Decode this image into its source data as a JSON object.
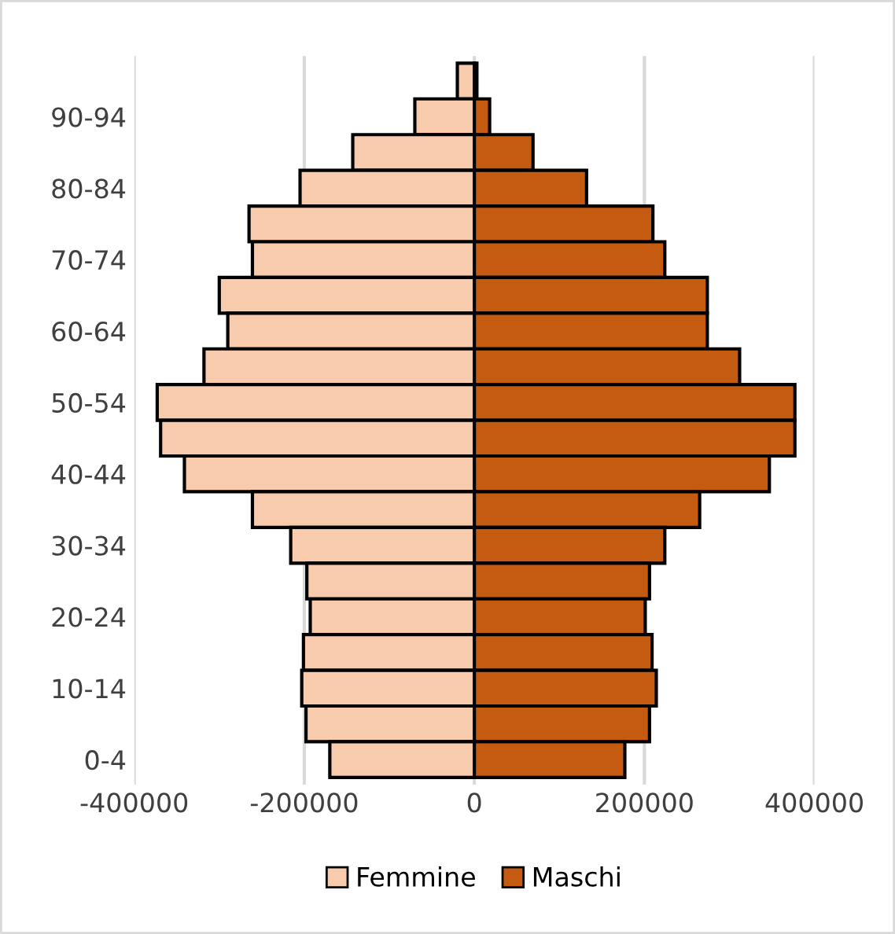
{
  "chart_data": {
    "type": "bar",
    "orientation": "horizontal",
    "categories": [
      null,
      "90-94",
      null,
      "80-84",
      null,
      "70-74",
      null,
      "60-64",
      null,
      "50-54",
      null,
      "40-44",
      null,
      "30-34",
      null,
      "20-24",
      null,
      "10-14",
      null,
      "0-4"
    ],
    "series": [
      {
        "name": "Femmine",
        "color": "#f8cbad",
        "values": [
          -20000,
          -70000,
          -143000,
          -205000,
          -265000,
          -261000,
          -300000,
          -290000,
          -318000,
          -373000,
          -369000,
          -341000,
          -261000,
          -216000,
          -197000,
          -193000,
          -201000,
          -203000,
          -198000,
          -170000
        ]
      },
      {
        "name": "Maschi",
        "color": "#c55a11",
        "values": [
          3000,
          18000,
          69000,
          132000,
          210000,
          224000,
          274000,
          274000,
          312000,
          377000,
          377000,
          347000,
          265000,
          224000,
          206000,
          201000,
          209000,
          214000,
          206000,
          177000
        ]
      }
    ],
    "xlim": [
      -400000,
      400000
    ],
    "xticks": [
      -400000,
      -200000,
      0,
      200000,
      400000
    ],
    "grid": "x",
    "legend": "bottom",
    "stacked": true
  }
}
